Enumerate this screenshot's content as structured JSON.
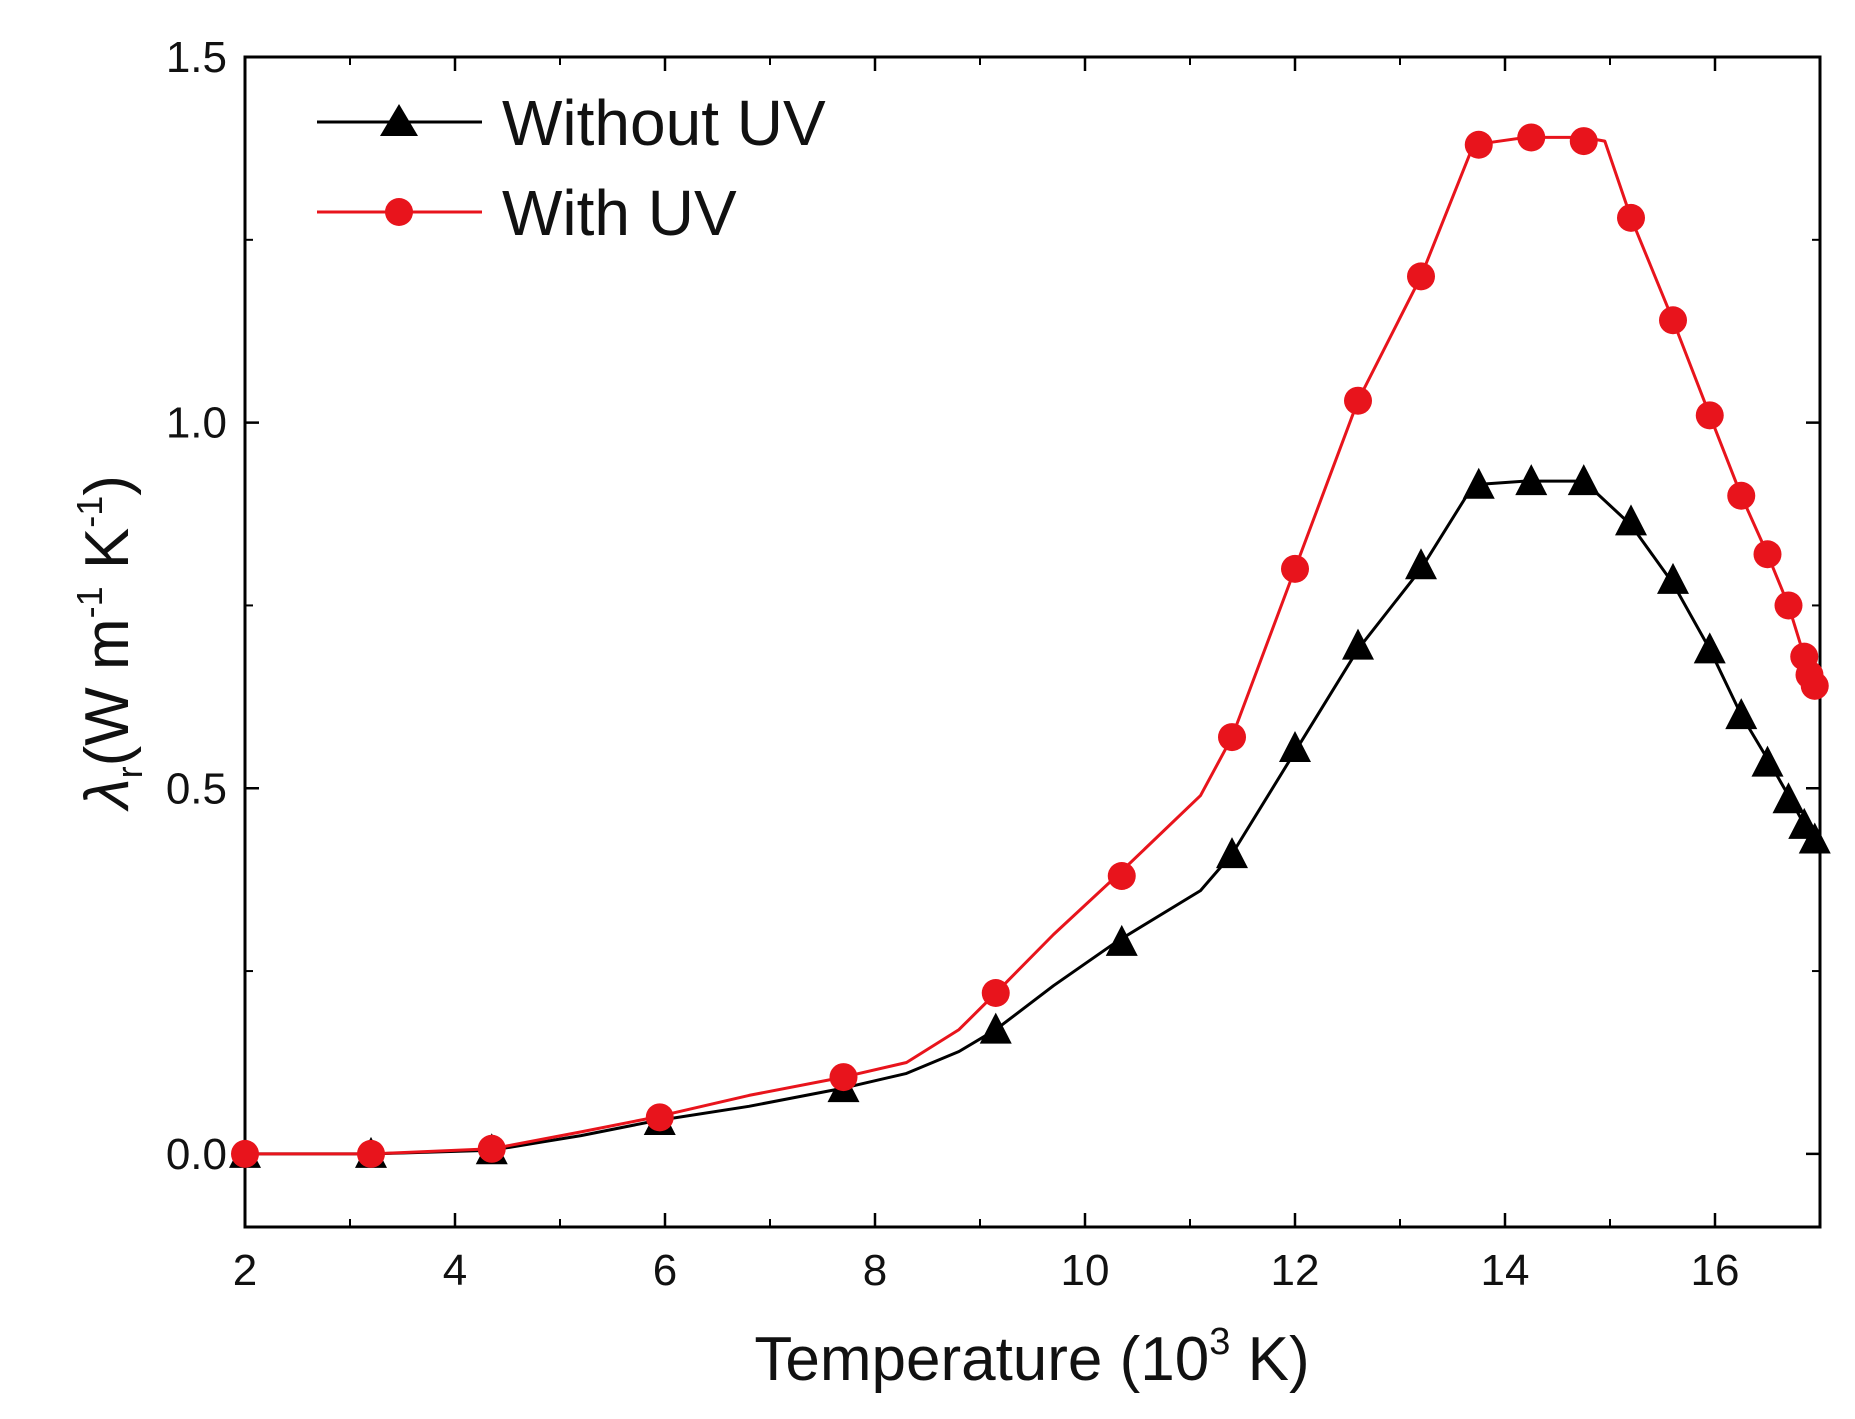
{
  "chart_data": {
    "type": "line",
    "title": "",
    "xlabel": "Temperature (10",
    "xlabel_sup": "3",
    "xlabel_tail": " K)",
    "ylabel_symbol": "λ",
    "ylabel_sub": "r",
    "ylabel_units": "(W m",
    "ylabel_sup1": "-1",
    "ylabel_mid": " K",
    "ylabel_sup2": "-1",
    "ylabel_close": ")",
    "xlim": [
      2,
      17
    ],
    "ylim": [
      -0.1,
      1.5
    ],
    "xticks": [
      2,
      4,
      6,
      8,
      10,
      12,
      14,
      16
    ],
    "xtick_labels": [
      "2",
      "4",
      "6",
      "8",
      "10",
      "12",
      "14",
      "16"
    ],
    "yticks": [
      0.0,
      0.5,
      1.0,
      1.5
    ],
    "ytick_labels": [
      "0.0",
      "0.5",
      "1.0",
      "1.5"
    ],
    "legend_position": "top-left",
    "series": [
      {
        "name": "Without UV",
        "color": "#000000",
        "marker": "triangle",
        "line_x": [
          2.0,
          3.2,
          4.35,
          5.2,
          5.9,
          6.8,
          7.7,
          8.3,
          8.8,
          9.15,
          9.7,
          10.3,
          11.1,
          11.4,
          12.0,
          12.6,
          13.2,
          13.7,
          14.2,
          14.75,
          15.2,
          15.6,
          15.95,
          16.25,
          16.5,
          16.7,
          16.85,
          17.0
        ],
        "line_y": [
          0.0,
          0.0,
          0.005,
          0.025,
          0.045,
          0.065,
          0.09,
          0.11,
          0.14,
          0.17,
          0.23,
          0.29,
          0.36,
          0.41,
          0.55,
          0.69,
          0.8,
          0.915,
          0.92,
          0.92,
          0.86,
          0.78,
          0.69,
          0.6,
          0.54,
          0.49,
          0.45,
          0.43
        ],
        "marker_x": [
          2.0,
          3.2,
          4.35,
          5.95,
          7.7,
          9.15,
          10.35,
          11.4,
          12.0,
          12.6,
          13.2,
          13.75,
          14.25,
          14.75,
          15.2,
          15.6,
          15.95,
          16.25,
          16.5,
          16.7,
          16.85,
          16.95
        ],
        "marker_y": [
          0.0,
          0.0,
          0.005,
          0.045,
          0.09,
          0.17,
          0.29,
          0.41,
          0.555,
          0.695,
          0.805,
          0.915,
          0.92,
          0.92,
          0.865,
          0.785,
          0.69,
          0.6,
          0.535,
          0.485,
          0.45,
          0.43
        ]
      },
      {
        "name": "With UV",
        "color": "#e8141c",
        "marker": "circle",
        "line_x": [
          2.0,
          3.2,
          4.35,
          5.2,
          5.9,
          6.8,
          7.7,
          8.3,
          8.8,
          9.15,
          9.7,
          10.3,
          11.1,
          11.4,
          12.0,
          12.6,
          13.2,
          13.7,
          14.2,
          14.75,
          14.95,
          15.2,
          15.6,
          15.95,
          16.25,
          16.5,
          16.7,
          16.85,
          16.95
        ],
        "line_y": [
          0.0,
          0.0,
          0.007,
          0.03,
          0.05,
          0.08,
          0.105,
          0.125,
          0.17,
          0.22,
          0.3,
          0.38,
          0.49,
          0.57,
          0.8,
          1.03,
          1.2,
          1.38,
          1.39,
          1.39,
          1.385,
          1.28,
          1.14,
          1.01,
          0.9,
          0.82,
          0.75,
          0.68,
          0.64
        ],
        "marker_x": [
          2.0,
          3.2,
          4.35,
          5.95,
          7.7,
          9.15,
          10.35,
          11.4,
          12.0,
          12.6,
          13.2,
          13.75,
          14.25,
          14.75,
          15.2,
          15.6,
          15.95,
          16.25,
          16.5,
          16.7,
          16.85,
          16.9,
          16.95
        ],
        "marker_y": [
          0.0,
          0.0,
          0.007,
          0.05,
          0.105,
          0.22,
          0.38,
          0.57,
          0.8,
          1.03,
          1.2,
          1.38,
          1.39,
          1.385,
          1.28,
          1.14,
          1.01,
          0.9,
          0.82,
          0.75,
          0.68,
          0.655,
          0.64
        ]
      }
    ]
  }
}
